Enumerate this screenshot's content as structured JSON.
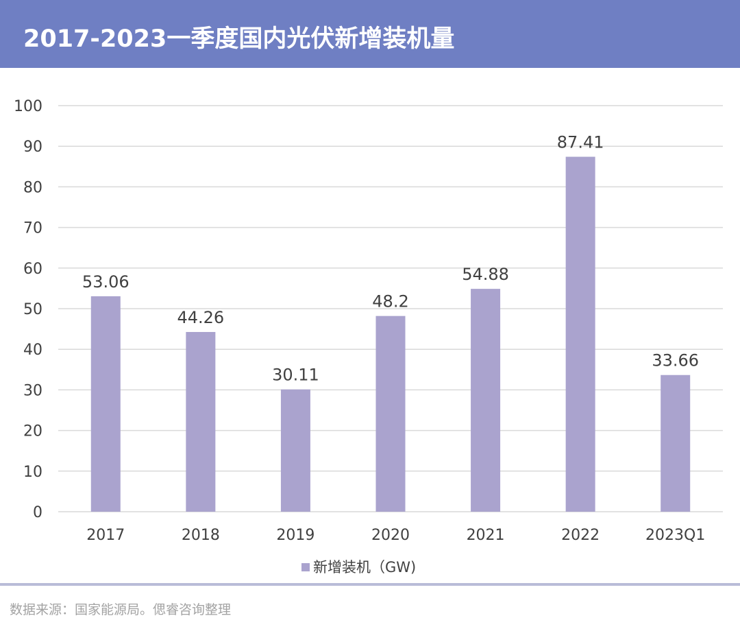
{
  "header": {
    "title": "2017-2023一季度国内光伏新增装机量"
  },
  "footer": {
    "source": "数据来源：国家能源局。偲睿咨询整理"
  },
  "colors": {
    "header_bg": "#6f7fc3",
    "bar": "#aaa3ce",
    "grid": "#d9d9d9",
    "text": "#404040",
    "footer_line": "#b9bcd8"
  },
  "chart_data": {
    "type": "bar",
    "categories": [
      "2017",
      "2018",
      "2019",
      "2020",
      "2021",
      "2022",
      "2023Q1"
    ],
    "series": [
      {
        "name": "新增装机（GW)",
        "values": [
          53.06,
          44.26,
          30.11,
          48.2,
          54.88,
          87.41,
          33.66
        ],
        "labels": [
          "53.06",
          "44.26",
          "30.11",
          "48.2",
          "54.88",
          "87.41",
          "33.66"
        ]
      }
    ],
    "yticks": [
      "0",
      "10",
      "20",
      "30",
      "40",
      "50",
      "60",
      "70",
      "80",
      "90",
      "100"
    ],
    "ylim": [
      0,
      100
    ],
    "grid": true,
    "legend_position": "bottom"
  }
}
